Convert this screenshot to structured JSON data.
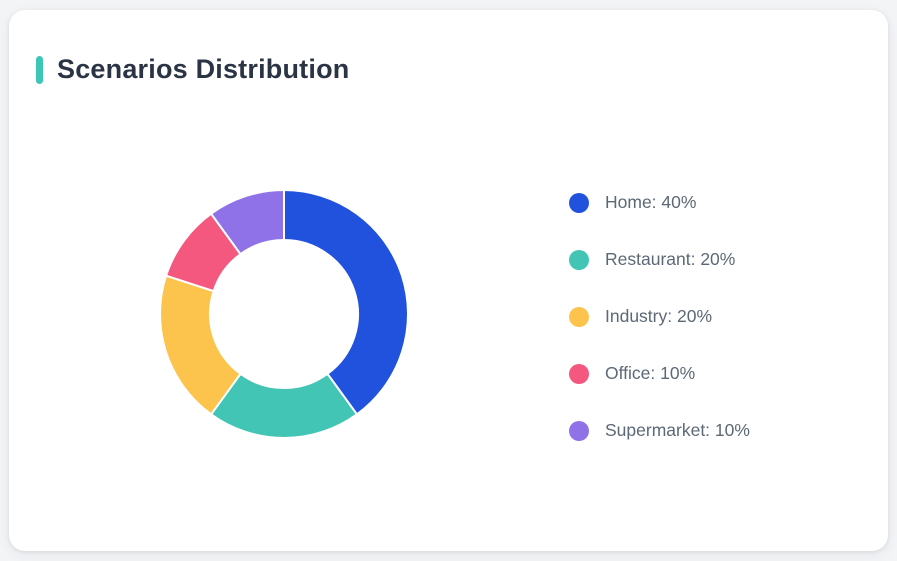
{
  "page": {
    "background": "#f3f4f6"
  },
  "card": {
    "title": "Scenarios Distribution",
    "accent_color": "#3bc6b6",
    "title_color": "#2b3444"
  },
  "chart_data": {
    "type": "pie",
    "title": "Scenarios Distribution",
    "donut": true,
    "start_angle_deg": 0,
    "direction": "clockwise",
    "outer_radius_px": 124,
    "inner_radius_px": 74,
    "slice_border_color": "#ffffff",
    "slice_border_width": 2,
    "categories": [
      "Home",
      "Restaurant",
      "Industry",
      "Office",
      "Supermarket"
    ],
    "values": [
      40,
      20,
      20,
      10,
      10
    ],
    "unit": "%",
    "colors": [
      "#2152dd",
      "#42c5b5",
      "#fcc34d",
      "#f5587e",
      "#8f72e8"
    ],
    "legend_position": "right",
    "legend_labels": [
      "Home: 40%",
      "Restaurant: 20%",
      "Industry: 20%",
      "Office: 10%",
      "Supermarket: 10%"
    ]
  }
}
